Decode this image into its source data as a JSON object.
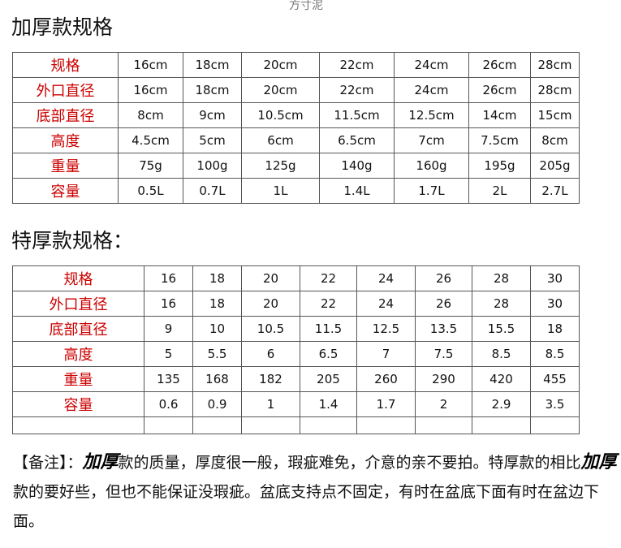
{
  "watermark": "方寸泥",
  "section1": {
    "title": "加厚款规格",
    "rows": [
      {
        "label": "规格",
        "values": [
          "16cm",
          "18cm",
          "20cm",
          "22cm",
          "24cm",
          "26cm",
          "28cm"
        ]
      },
      {
        "label": "外口直径",
        "values": [
          "16cm",
          "18cm",
          "20cm",
          "22cm",
          "24cm",
          "26cm",
          "28cm"
        ]
      },
      {
        "label": "底部直径",
        "values": [
          "8cm",
          "9cm",
          "10.5cm",
          "11.5cm",
          "12.5cm",
          "14cm",
          "15cm"
        ]
      },
      {
        "label": "高度",
        "values": [
          "4.5cm",
          "5cm",
          "6cm",
          "6.5cm",
          "7cm",
          "7.5cm",
          "8cm"
        ]
      },
      {
        "label": "重量",
        "values": [
          "75g",
          "100g",
          "125g",
          "140g",
          "160g",
          "195g",
          "205g"
        ]
      },
      {
        "label": "容量",
        "values": [
          "0.5L",
          "0.7L",
          "1L",
          "1.4L",
          "1.7L",
          "2L",
          "2.7L"
        ]
      }
    ]
  },
  "section2": {
    "title": "特厚款规格：",
    "rows": [
      {
        "label": "规格",
        "values": [
          "16",
          "18",
          "20",
          "22",
          "24",
          "26",
          "28",
          "30"
        ]
      },
      {
        "label": "外口直径",
        "values": [
          "16",
          "18",
          "20",
          "22",
          "24",
          "26",
          "28",
          "30"
        ]
      },
      {
        "label": "底部直径",
        "values": [
          "9",
          "10",
          "10.5",
          "11.5",
          "12.5",
          "13.5",
          "15.5",
          "18"
        ]
      },
      {
        "label": "高度",
        "values": [
          "5",
          "5.5",
          "6",
          "6.5",
          "7",
          "7.5",
          "8.5",
          "8.5"
        ]
      },
      {
        "label": "重量",
        "values": [
          "135",
          "168",
          "182",
          "205",
          "260",
          "290",
          "420",
          "455"
        ]
      },
      {
        "label": "容量",
        "values": [
          "0.6",
          "0.9",
          "1",
          "1.4",
          "1.7",
          "2",
          "2.9",
          "3.5"
        ]
      }
    ]
  },
  "note": {
    "prefix": "【备注】：",
    "hand1": "加厚",
    "part1": "款的质量，厚度很一般，瑕疵难免，介意的亲不要拍。特厚款的相比",
    "hand2": "加厚",
    "part2": "款的要好些，但也不能保证没瑕疵。盆底支持点不固定，有时在盆底下面有时在盆边下面。"
  }
}
